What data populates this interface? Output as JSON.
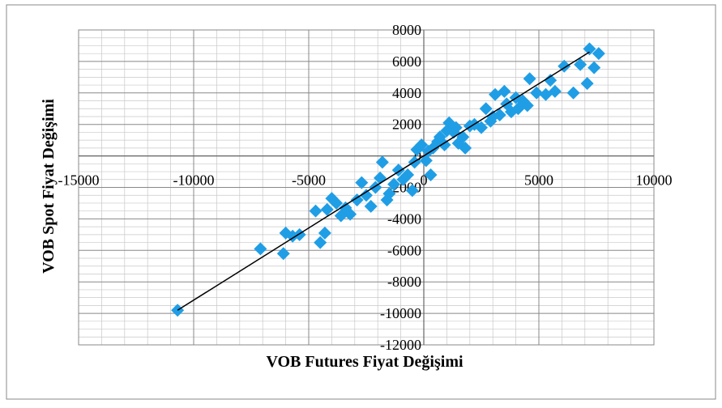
{
  "chart_data": {
    "type": "scatter",
    "x_label": "VOB Futures Fiyat Değişimi",
    "y_label": "VOB Spot Fiyat Değişimi",
    "color": "#1f9ee6",
    "grid": true,
    "xlim": [
      -15000,
      10000
    ],
    "xticks": [
      -15000,
      -10000,
      -5000,
      0,
      5000,
      10000
    ],
    "ylim": [
      -12000,
      8000
    ],
    "yticks": [
      -12000,
      -10000,
      -8000,
      -6000,
      -4000,
      -2000,
      0,
      2000,
      4000,
      6000,
      8000
    ],
    "x": [
      -10700,
      -7100,
      -6100,
      -6000,
      -5700,
      -5400,
      -4700,
      -4500,
      -4300,
      -4200,
      -4000,
      -3800,
      -3600,
      -3400,
      -3200,
      -2900,
      -2700,
      -2500,
      -2300,
      -2100,
      -1900,
      -1800,
      -1600,
      -1500,
      -1300,
      -1100,
      -900,
      -700,
      -500,
      -400,
      -300,
      -100,
      100,
      200,
      300,
      400,
      600,
      700,
      900,
      1000,
      1100,
      1300,
      1400,
      1500,
      1700,
      1800,
      2000,
      2200,
      2500,
      2700,
      2900,
      3000,
      3100,
      3300,
      3500,
      3600,
      3800,
      4000,
      4100,
      4300,
      4500,
      4600,
      4900,
      5300,
      5500,
      5700,
      6100,
      6500,
      6800,
      7100,
      7200,
      7400,
      7600
    ],
    "y": [
      -9800,
      -5900,
      -6200,
      -4900,
      -5100,
      -5000,
      -3500,
      -5500,
      -4900,
      -3400,
      -2700,
      -3000,
      -3800,
      -3300,
      -3700,
      -2800,
      -1700,
      -2500,
      -3200,
      -2000,
      -1400,
      -400,
      -2800,
      -2400,
      -1800,
      -900,
      -1500,
      -1200,
      -2200,
      -400,
      400,
      700,
      -300,
      300,
      -1200,
      500,
      900,
      1200,
      700,
      1600,
      2100,
      1500,
      1800,
      800,
      1200,
      500,
      1900,
      2000,
      1800,
      3000,
      2200,
      2500,
      3900,
      2600,
      4100,
      3300,
      2800,
      3700,
      3000,
      3500,
      3200,
      4900,
      4000,
      3900,
      4800,
      4100,
      5700,
      4000,
      5800,
      4600,
      6800,
      5600,
      6500
    ],
    "trendline": {
      "x": [
        -10700,
        7200
      ],
      "y": [
        -9800,
        6600
      ],
      "color": "#000000"
    }
  }
}
